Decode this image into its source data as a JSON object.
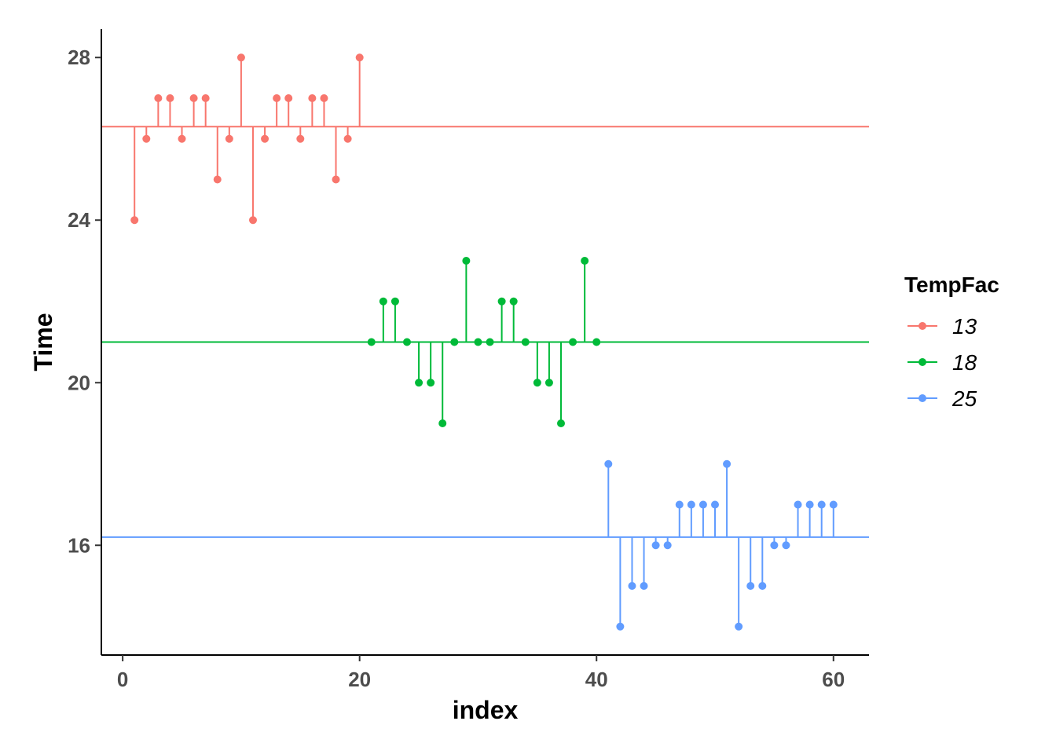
{
  "chart_data": {
    "type": "line",
    "subtype": "lollipop",
    "xlabel": "index",
    "ylabel": "Time",
    "xlim": [
      -1.8,
      63
    ],
    "ylim": [
      13.3,
      28.7
    ],
    "xticks": [
      0,
      20,
      40,
      60
    ],
    "yticks": [
      16,
      20,
      24,
      28
    ],
    "grid": false,
    "legend": {
      "title": "TempFac",
      "position": "right"
    },
    "series": [
      {
        "name": "13",
        "color": "#F8766D",
        "mean": 26.3,
        "x": [
          1,
          2,
          3,
          4,
          5,
          6,
          7,
          8,
          9,
          10,
          11,
          12,
          13,
          14,
          15,
          16,
          17,
          18,
          19,
          20
        ],
        "values": [
          24,
          26,
          27,
          27,
          26,
          27,
          27,
          25,
          26,
          28,
          24,
          26,
          27,
          27,
          26,
          27,
          27,
          25,
          26,
          28
        ]
      },
      {
        "name": "18",
        "color": "#00BA38",
        "mean": 21,
        "x": [
          21,
          22,
          23,
          24,
          25,
          26,
          27,
          28,
          29,
          30,
          31,
          32,
          33,
          34,
          35,
          36,
          37,
          38,
          39,
          40
        ],
        "values": [
          21,
          22,
          22,
          21,
          20,
          20,
          19,
          21,
          23,
          21,
          21,
          22,
          22,
          21,
          20,
          20,
          19,
          21,
          23,
          21
        ]
      },
      {
        "name": "25",
        "color": "#619CFF",
        "mean": 16.2,
        "x": [
          41,
          42,
          43,
          44,
          45,
          46,
          47,
          48,
          49,
          50,
          51,
          52,
          53,
          54,
          55,
          56,
          57,
          58,
          59,
          60
        ],
        "values": [
          18,
          14,
          15,
          15,
          16,
          16,
          17,
          17,
          17,
          17,
          18,
          14,
          15,
          15,
          16,
          16,
          17,
          17,
          17,
          17
        ]
      }
    ]
  }
}
